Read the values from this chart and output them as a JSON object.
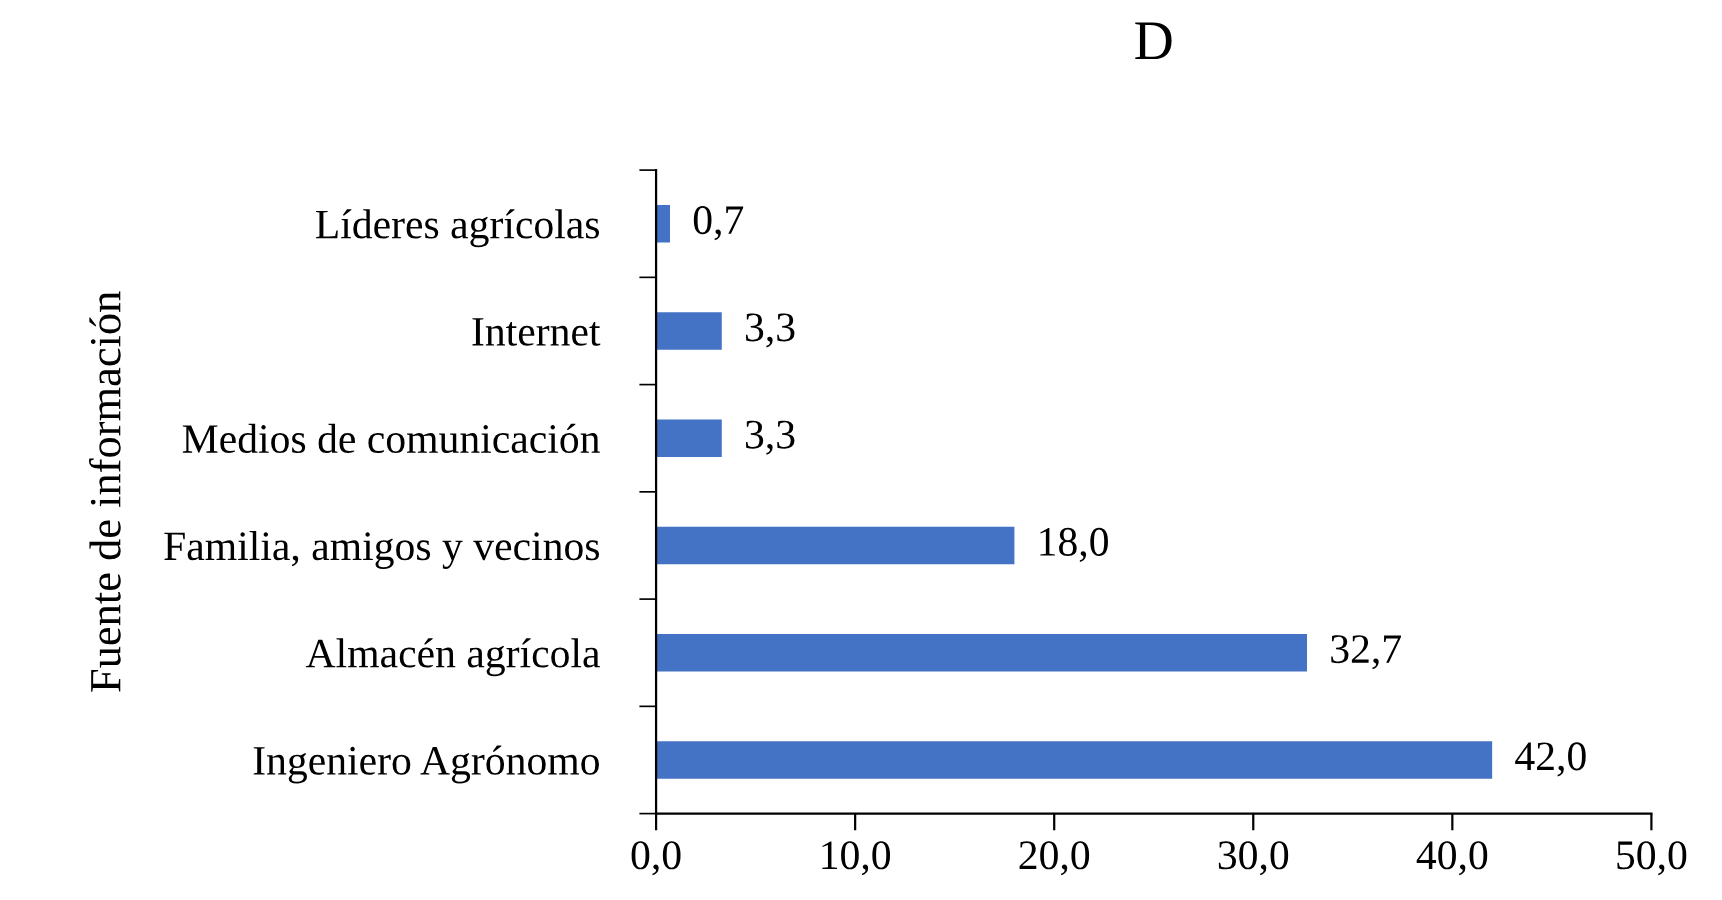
{
  "chart_data": {
    "type": "bar",
    "orientation": "horizontal",
    "title": "D",
    "ylabel": "Fuente de información",
    "categories": [
      "Líderes agrícolas",
      "Internet",
      "Medios de comunicación",
      "Familia, amigos y vecinos",
      "Almacén agrícola",
      "Ingeniero Agrónomo"
    ],
    "values": [
      0.7,
      3.3,
      3.3,
      18.0,
      32.7,
      42.0
    ],
    "color": "#4472c4",
    "value_labels": [
      "0,7",
      "3,3",
      "3,3",
      "18,0",
      "32,7",
      "42,0"
    ],
    "xlim": [
      0,
      50
    ],
    "xticks": [
      {
        "value": 0,
        "label": "0,0"
      },
      {
        "value": 10,
        "label": "10,0"
      },
      {
        "value": 20,
        "label": "20,0"
      },
      {
        "value": 30,
        "label": "30,0"
      },
      {
        "value": 40,
        "label": "40,0"
      },
      {
        "value": 50,
        "label": "50,0"
      }
    ],
    "grid": false,
    "legend": false
  }
}
